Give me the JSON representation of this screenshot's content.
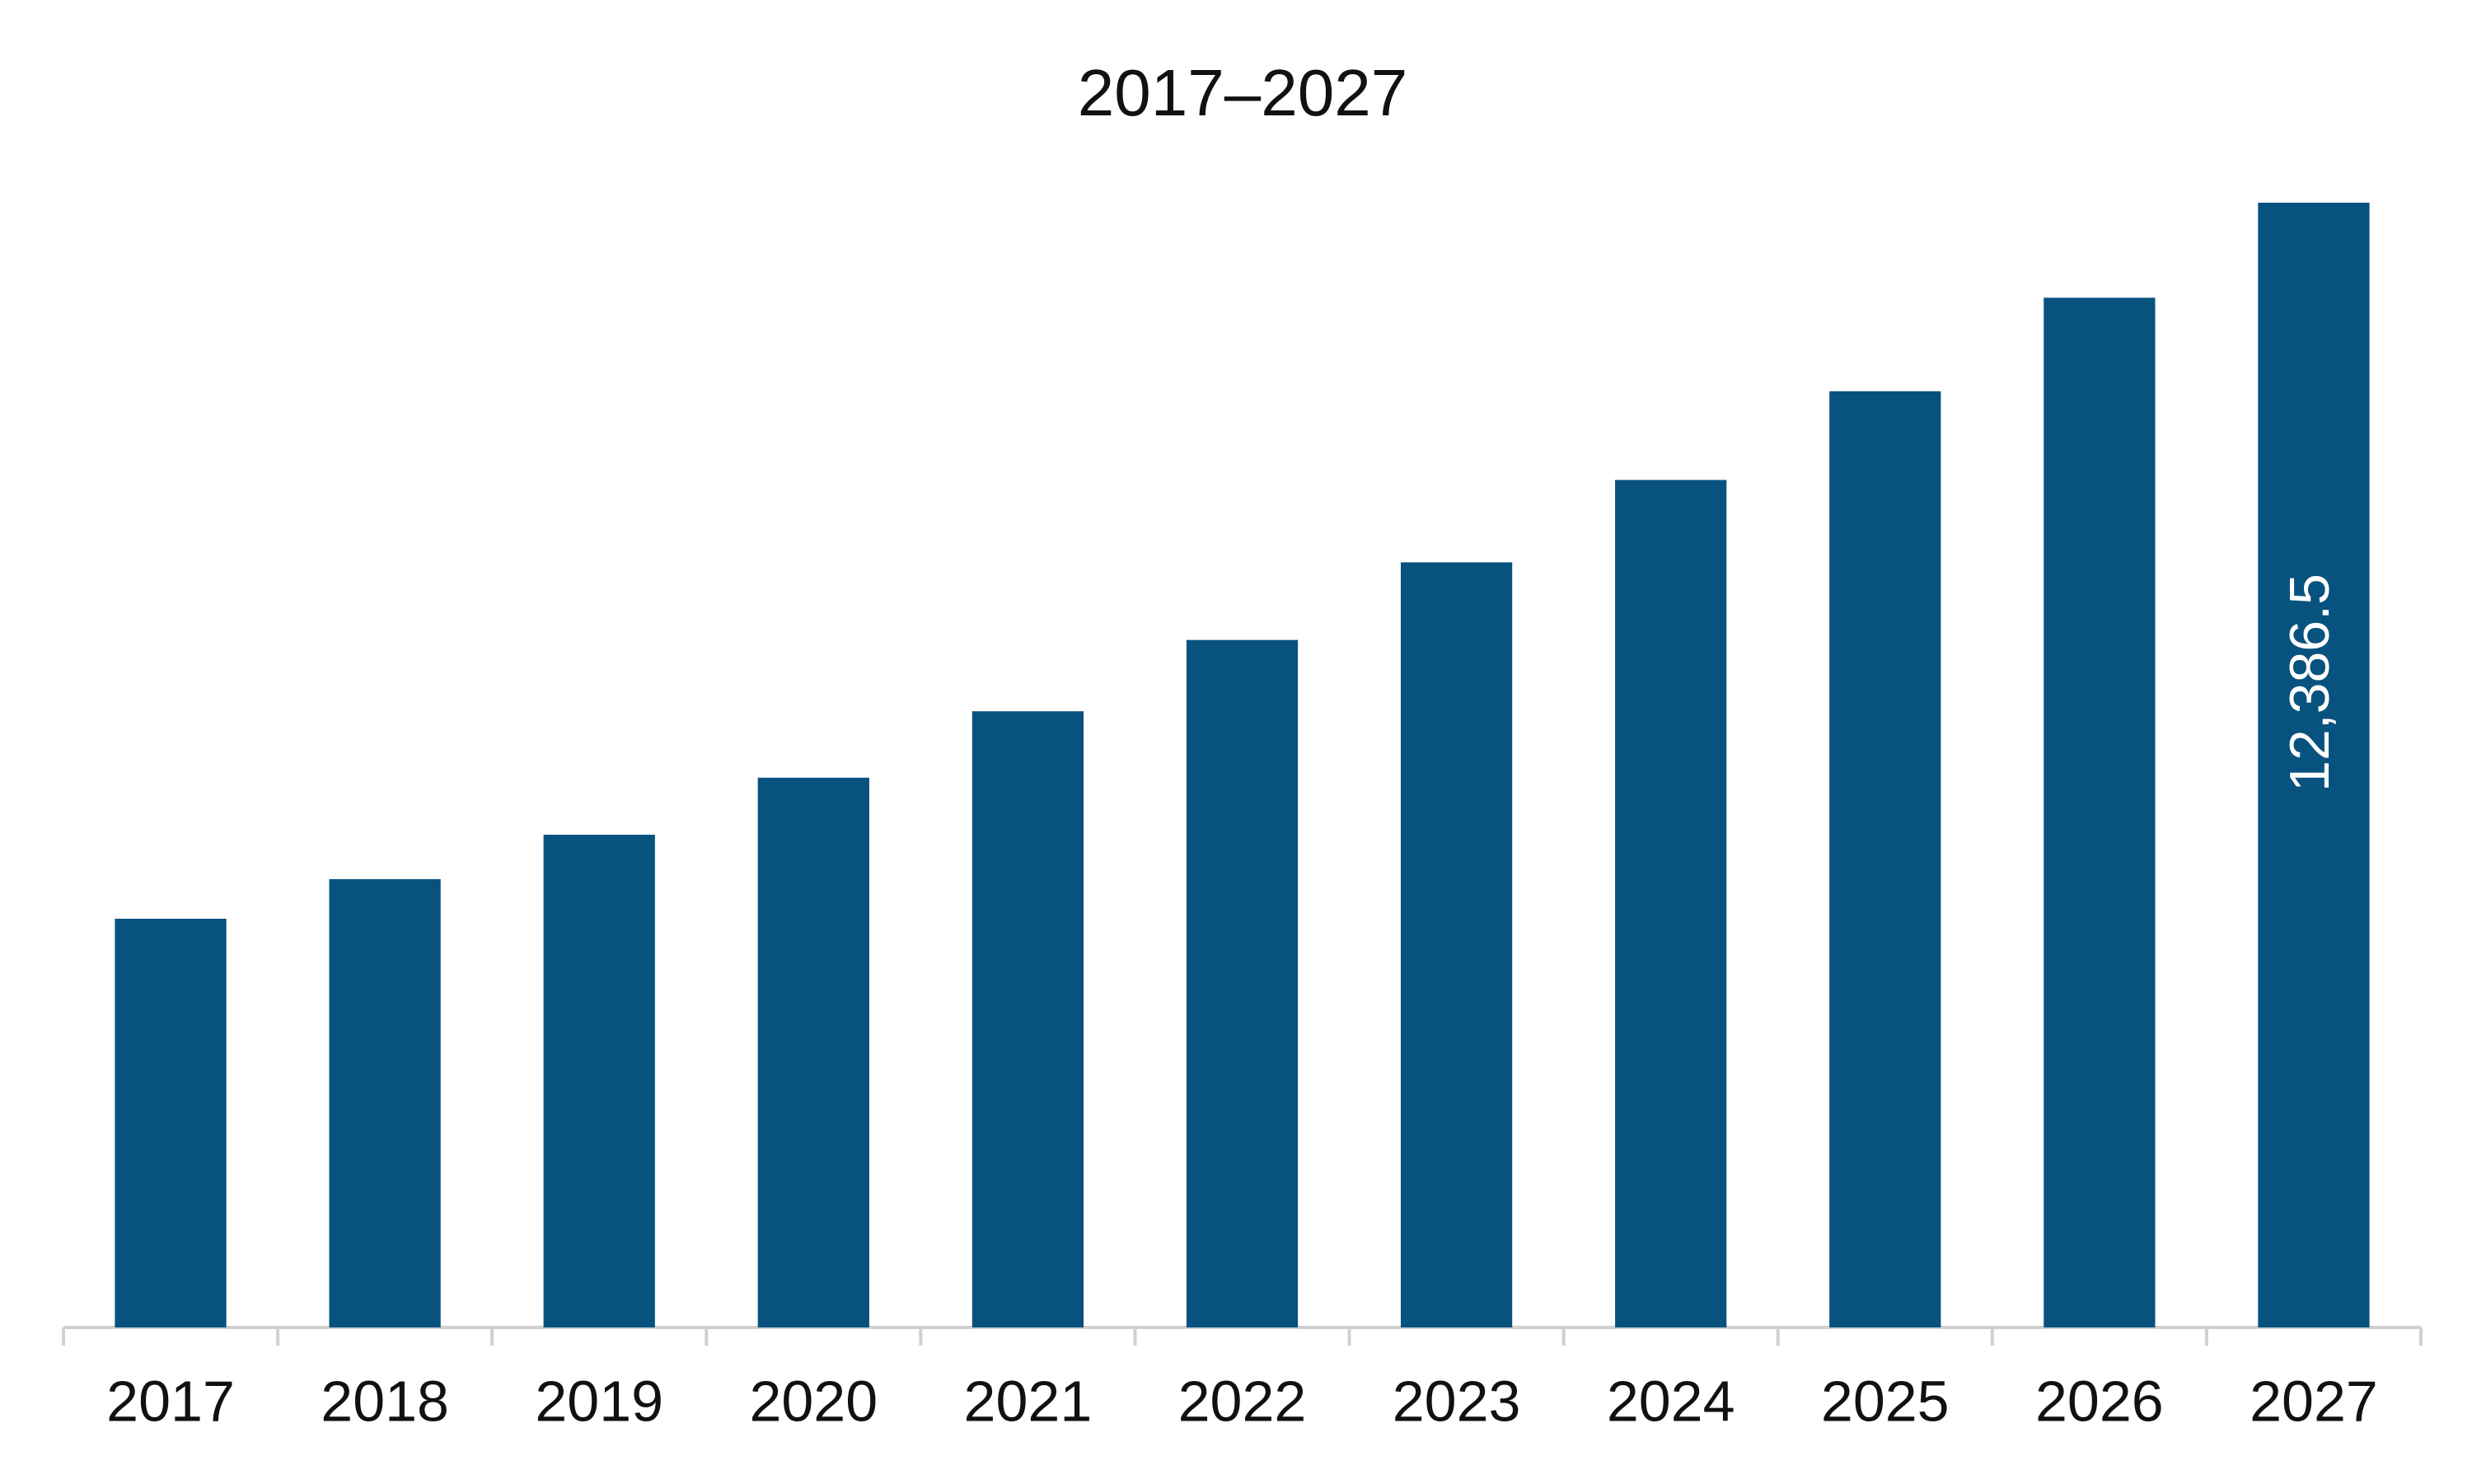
{
  "chart_data": {
    "type": "bar",
    "title": "2017–2027",
    "categories": [
      "2017",
      "2018",
      "2019",
      "2020",
      "2021",
      "2022",
      "2023",
      "2024",
      "2025",
      "2026",
      "2027"
    ],
    "values": [
      4501,
      4937,
      5426,
      6054,
      6786,
      7571,
      8426,
      9333,
      10310,
      11340,
      12386.5
    ],
    "value_labels": [
      null,
      null,
      null,
      null,
      null,
      null,
      null,
      null,
      null,
      null,
      "12,386.5"
    ],
    "color": "#08527f"
  }
}
